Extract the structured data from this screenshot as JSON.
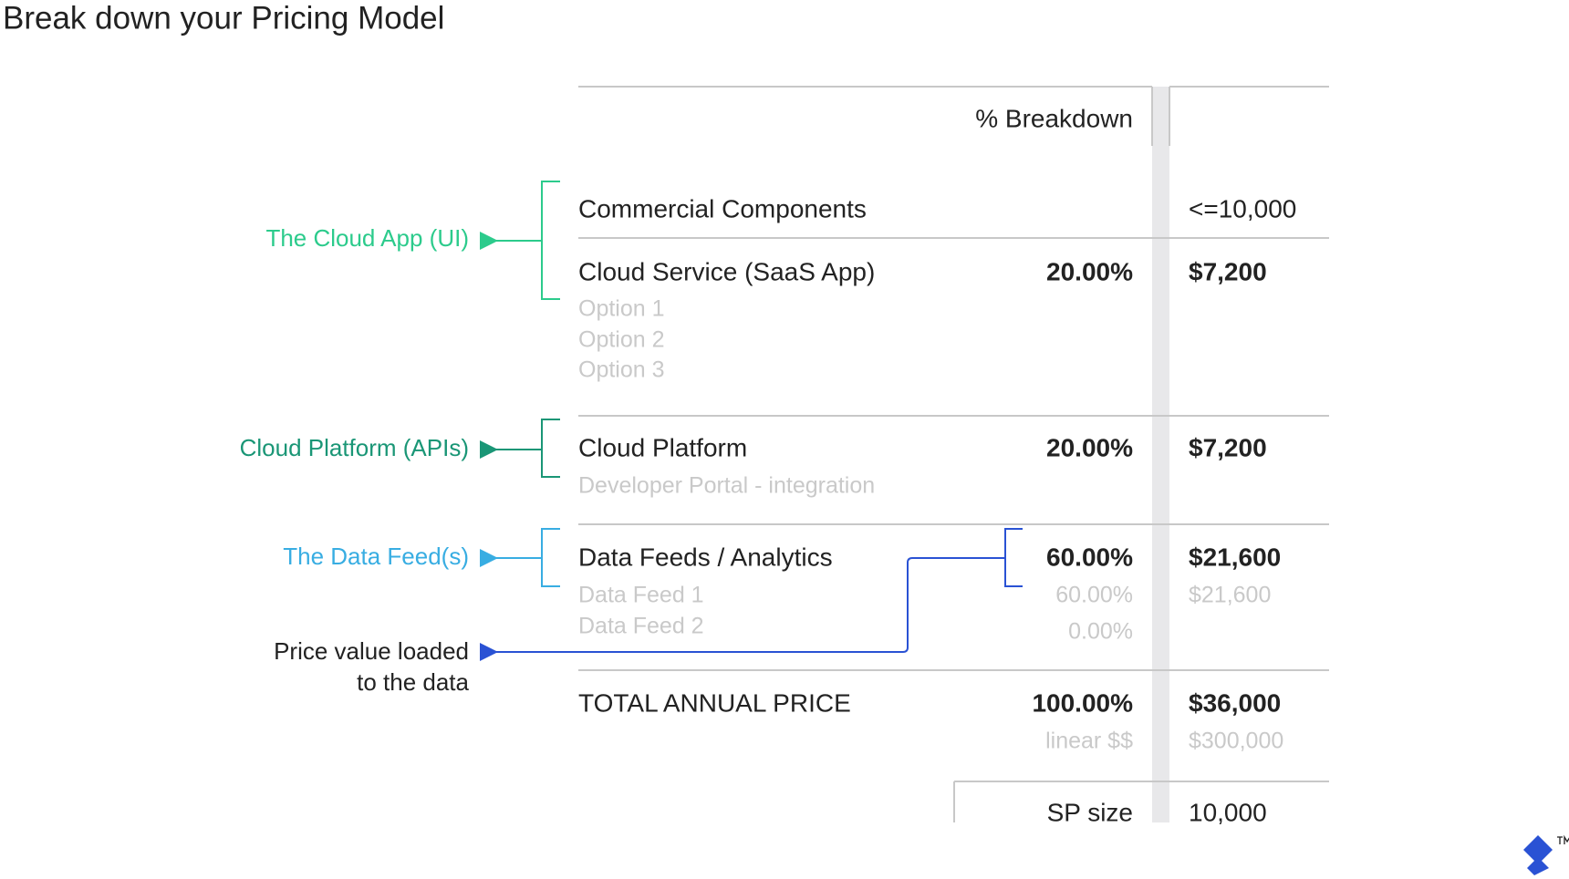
{
  "title": "Break down your Pricing Model",
  "annotations": [
    {
      "label": "The Cloud App (UI)"
    },
    {
      "label": "Cloud Platform (APIs)"
    },
    {
      "label": "The Data Feed(s)"
    },
    {
      "lines": [
        "Price value loaded",
        "to the data"
      ]
    }
  ],
  "table": {
    "header": "% Breakdown",
    "rows": [
      {
        "label": "Commercial Components",
        "price": "<=10,000"
      },
      {
        "label": "Cloud Service (SaaS App)",
        "percent": "20.00%",
        "price": "$7,200",
        "items": [
          "Option 1",
          "Option 2",
          "Option 3"
        ]
      },
      {
        "label": "Cloud Platform",
        "percent": "20.00%",
        "price": "$7,200",
        "items": [
          "Developer Portal - integration"
        ]
      },
      {
        "label": "Data Feeds / Analytics",
        "percent": "60.00%",
        "price": "$21,600",
        "items": [
          "Data Feed 1",
          "Data Feed 2"
        ],
        "item_percents": [
          "60.00%",
          "0.00%"
        ],
        "item_prices": [
          "$21,600"
        ]
      },
      {
        "label": "TOTAL ANNUAL PRICE",
        "percent": "100.00%",
        "price": "$36,000",
        "note": "linear $$",
        "note_price": "$300,000"
      }
    ],
    "footer": {
      "label": "SP size",
      "value": "10,000"
    }
  }
}
